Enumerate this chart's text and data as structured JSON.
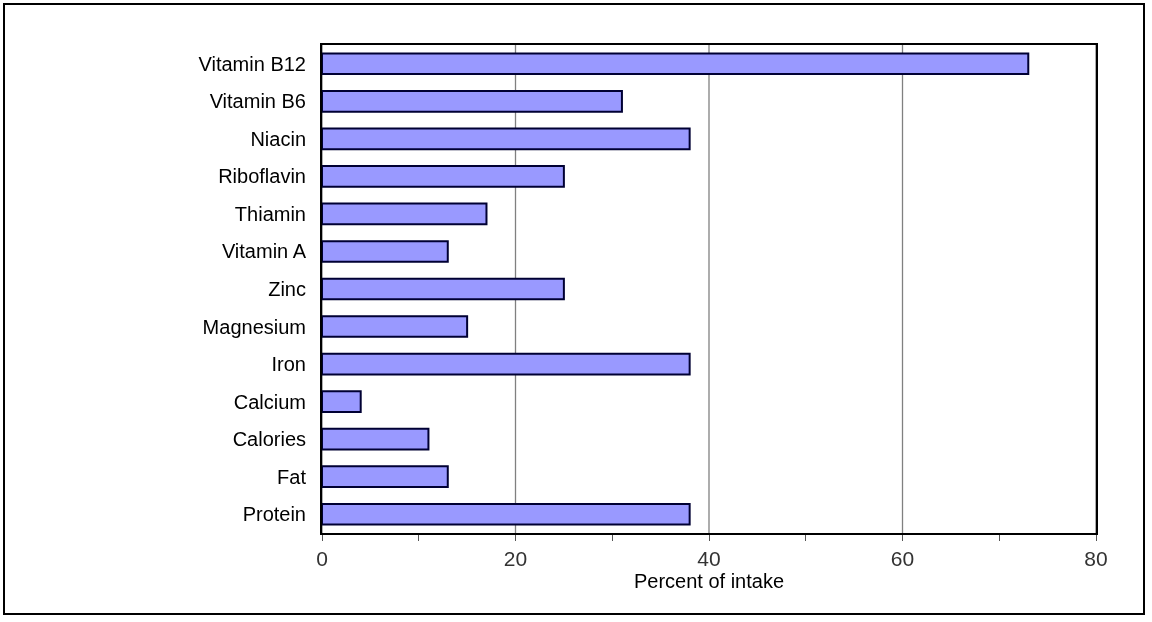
{
  "chart_data": {
    "type": "bar",
    "orientation": "horizontal",
    "xlabel": "Percent of intake",
    "categories": [
      "Vitamin B12",
      "Vitamin B6",
      "Niacin",
      "Riboflavin",
      "Thiamin",
      "Vitamin A",
      "Zinc",
      "Magnesium",
      "Iron",
      "Calcium",
      "Calories",
      "Fat",
      "Protein"
    ],
    "values": [
      73,
      31,
      38,
      25,
      17,
      13,
      25,
      15,
      38,
      4,
      11,
      13,
      38
    ],
    "color": "#9999ff",
    "xlim": [
      0,
      80
    ],
    "xticks": [
      0,
      {
        "value": 10,
        "label": null
      },
      20,
      {
        "value": 30,
        "label": null
      },
      40,
      {
        "value": 50,
        "label": null
      },
      60,
      {
        "value": 70,
        "label": null
      },
      80
    ],
    "grid": "x"
  }
}
